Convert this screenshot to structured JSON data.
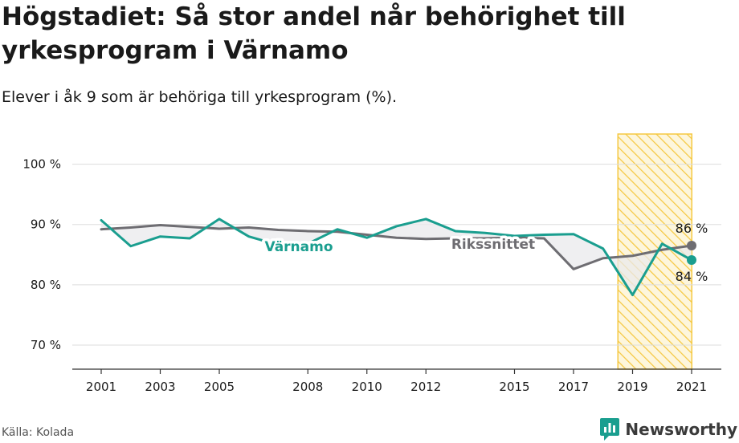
{
  "header": {
    "title": "Högstadiet: Så stor andel når behörighet till yrkesprogram i Värnamo",
    "subtitle": "Elever i åk 9 som är behöriga till yrkesprogram (%)."
  },
  "footer": {
    "source": "Källa: Kolada",
    "brand": "Newsworthy"
  },
  "colors": {
    "varnamo": "#1a9e8f",
    "riket": "#6e6d72",
    "highlight": "#f5c842",
    "gap_fill": "#e9e9ec"
  },
  "chart_data": {
    "type": "line",
    "x": [
      2001,
      2002,
      2003,
      2004,
      2005,
      2006,
      2007,
      2008,
      2009,
      2010,
      2011,
      2012,
      2013,
      2014,
      2015,
      2016,
      2017,
      2018,
      2019,
      2020,
      2021
    ],
    "series": [
      {
        "name": "Värnamo",
        "values": [
          90.7,
          86.4,
          88.0,
          87.7,
          90.9,
          88.0,
          86.6,
          86.8,
          89.2,
          87.8,
          89.7,
          90.9,
          88.9,
          88.6,
          88.1,
          88.3,
          88.4,
          86.0,
          78.3,
          86.8,
          84.1
        ]
      },
      {
        "name": "Rikssnittet",
        "values": [
          89.2,
          89.5,
          89.9,
          89.6,
          89.3,
          89.5,
          89.1,
          88.9,
          88.8,
          88.3,
          87.8,
          87.6,
          87.7,
          87.7,
          87.8,
          87.7,
          82.6,
          84.4,
          84.8,
          85.8,
          86.5
        ]
      }
    ],
    "x_ticks": [
      "2001",
      "2003",
      "2005",
      "2008",
      "2010",
      "2012",
      "2015",
      "2017",
      "2019",
      "2021"
    ],
    "y_ticks": [
      "70 %",
      "80 %",
      "90 %",
      "100 %"
    ],
    "ylim": [
      66,
      105
    ],
    "highlight_x": 2020,
    "end_labels": {
      "varnamo": "84 %",
      "riket": "86 %"
    },
    "grid": "horizontal"
  }
}
